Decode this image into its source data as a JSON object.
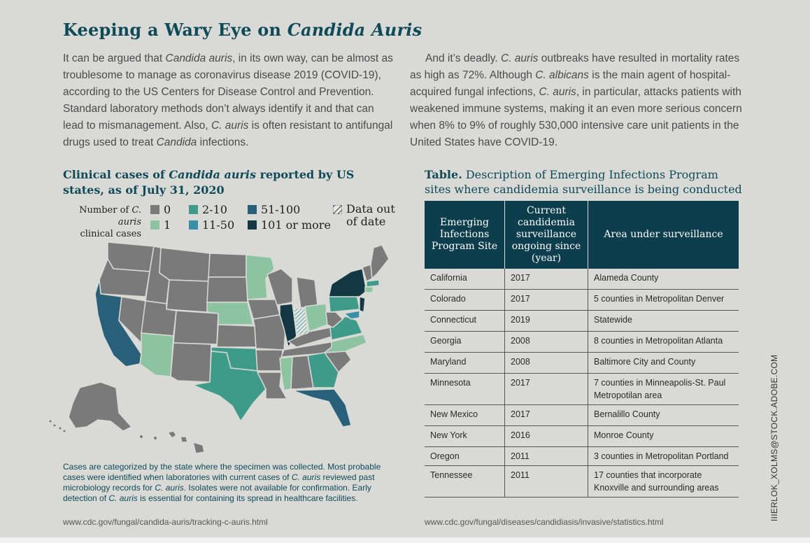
{
  "title": {
    "pre": "Keeping a Wary Eye on ",
    "em": "Candida Auris"
  },
  "left_paragraph": {
    "t1": "It can be argued that ",
    "e1": "Candida auris",
    "t2": ", in its own way, can be almost as troublesome to manage as coronavirus disease 2019 (COVID-19), according to the US Centers for Disease Control and Prevention. Standard laboratory methods don’t always identify it and that can lead to mismanagement. Also, ",
    "e2": "C. auris",
    "t3": " is often resistant to antifungal drugs used to treat ",
    "e3": "Candida",
    "t4": " infections."
  },
  "right_paragraph": {
    "t1": "And it’s deadly. ",
    "e1": "C. auris",
    "t2": " outbreaks have resulted in mortality rates as high as 72%. Although ",
    "e2": "C. albicans",
    "t3": " is the main agent of hospital-acquired fungal infections, ",
    "e3": "C. auris",
    "t4": ", in particular, attacks patients with weakened immune systems, making it an even more serious concern when 8% to 9% of roughly 530,000 intensive care unit patients in the United States have COVID-19."
  },
  "map": {
    "title_pre": "Clinical cases of ",
    "title_em": "Candida auris",
    "title_post": " reported by US states, as of July 31, 2020",
    "legend_label_pre": "Number of ",
    "legend_label_em": "C. auris",
    "legend_label_post": "clinical cases",
    "legend": [
      {
        "label": "0",
        "color": "#7a7a7a"
      },
      {
        "label": "1",
        "color": "#8cc3a0"
      },
      {
        "label": "2-10",
        "color": "#3e9b8a"
      },
      {
        "label": "11-50",
        "color": "#3a8fa8"
      },
      {
        "label": "51-100",
        "color": "#28607a"
      },
      {
        "label": "101 or more",
        "color": "#133844"
      },
      {
        "label": "Data out of date",
        "color": "hatched"
      }
    ],
    "note_t1": "Cases are categorized by the state where the specimen was collected. Most probable cases were identified when laboratories with current cases of ",
    "note_e1": "C. auris",
    "note_t2": " reviewed past microbiology records for ",
    "note_e2": "C. auris",
    "note_t3": ". Isolates were not available for confirmation. Early detection of ",
    "note_e3": "C. auris",
    "note_t4": " is essential for containing its spread in healthcare facilities.",
    "url": "www.cdc.gov/fungal/candida-auris/tracking-c-auris.html"
  },
  "table": {
    "title_bold": "Table.",
    "title_rest": " Description of Emerging Infections Program sites where candidemia surveillance is being conducted",
    "headers": [
      "Emerging Infections Program Site",
      "Current candidemia surveillance ongoing since (year)",
      "Area under surveillance"
    ],
    "rows": [
      [
        "California",
        "2017",
        "Alameda County"
      ],
      [
        "Colorado",
        "2017",
        "5 counties in Metropolitan Denver"
      ],
      [
        "Connecticut",
        "2019",
        "Statewide"
      ],
      [
        "Georgia",
        "2008",
        "8 counties in Metropolitan Atlanta"
      ],
      [
        "Maryland",
        "2008",
        "Baltimore City and County"
      ],
      [
        "Minnesota",
        "2017",
        "7 counties in Minneapolis-St. Paul Metropotilan area"
      ],
      [
        "New Mexico",
        "2017",
        "Bernalillo County"
      ],
      [
        "New York",
        "2016",
        "Monroe County"
      ],
      [
        "Oregon",
        "2011",
        "3 counties in Metropolitan Portland"
      ],
      [
        "Tennessee",
        "2011",
        "17 counties that incorporate Knoxville and surrounding areas"
      ]
    ],
    "url": "www.cdc.gov/fungal/diseases/candidiasis/invasive/statistics.html"
  },
  "credit": "IIIERLOK_XOLMS@STOCK.ADOBE.COM"
}
